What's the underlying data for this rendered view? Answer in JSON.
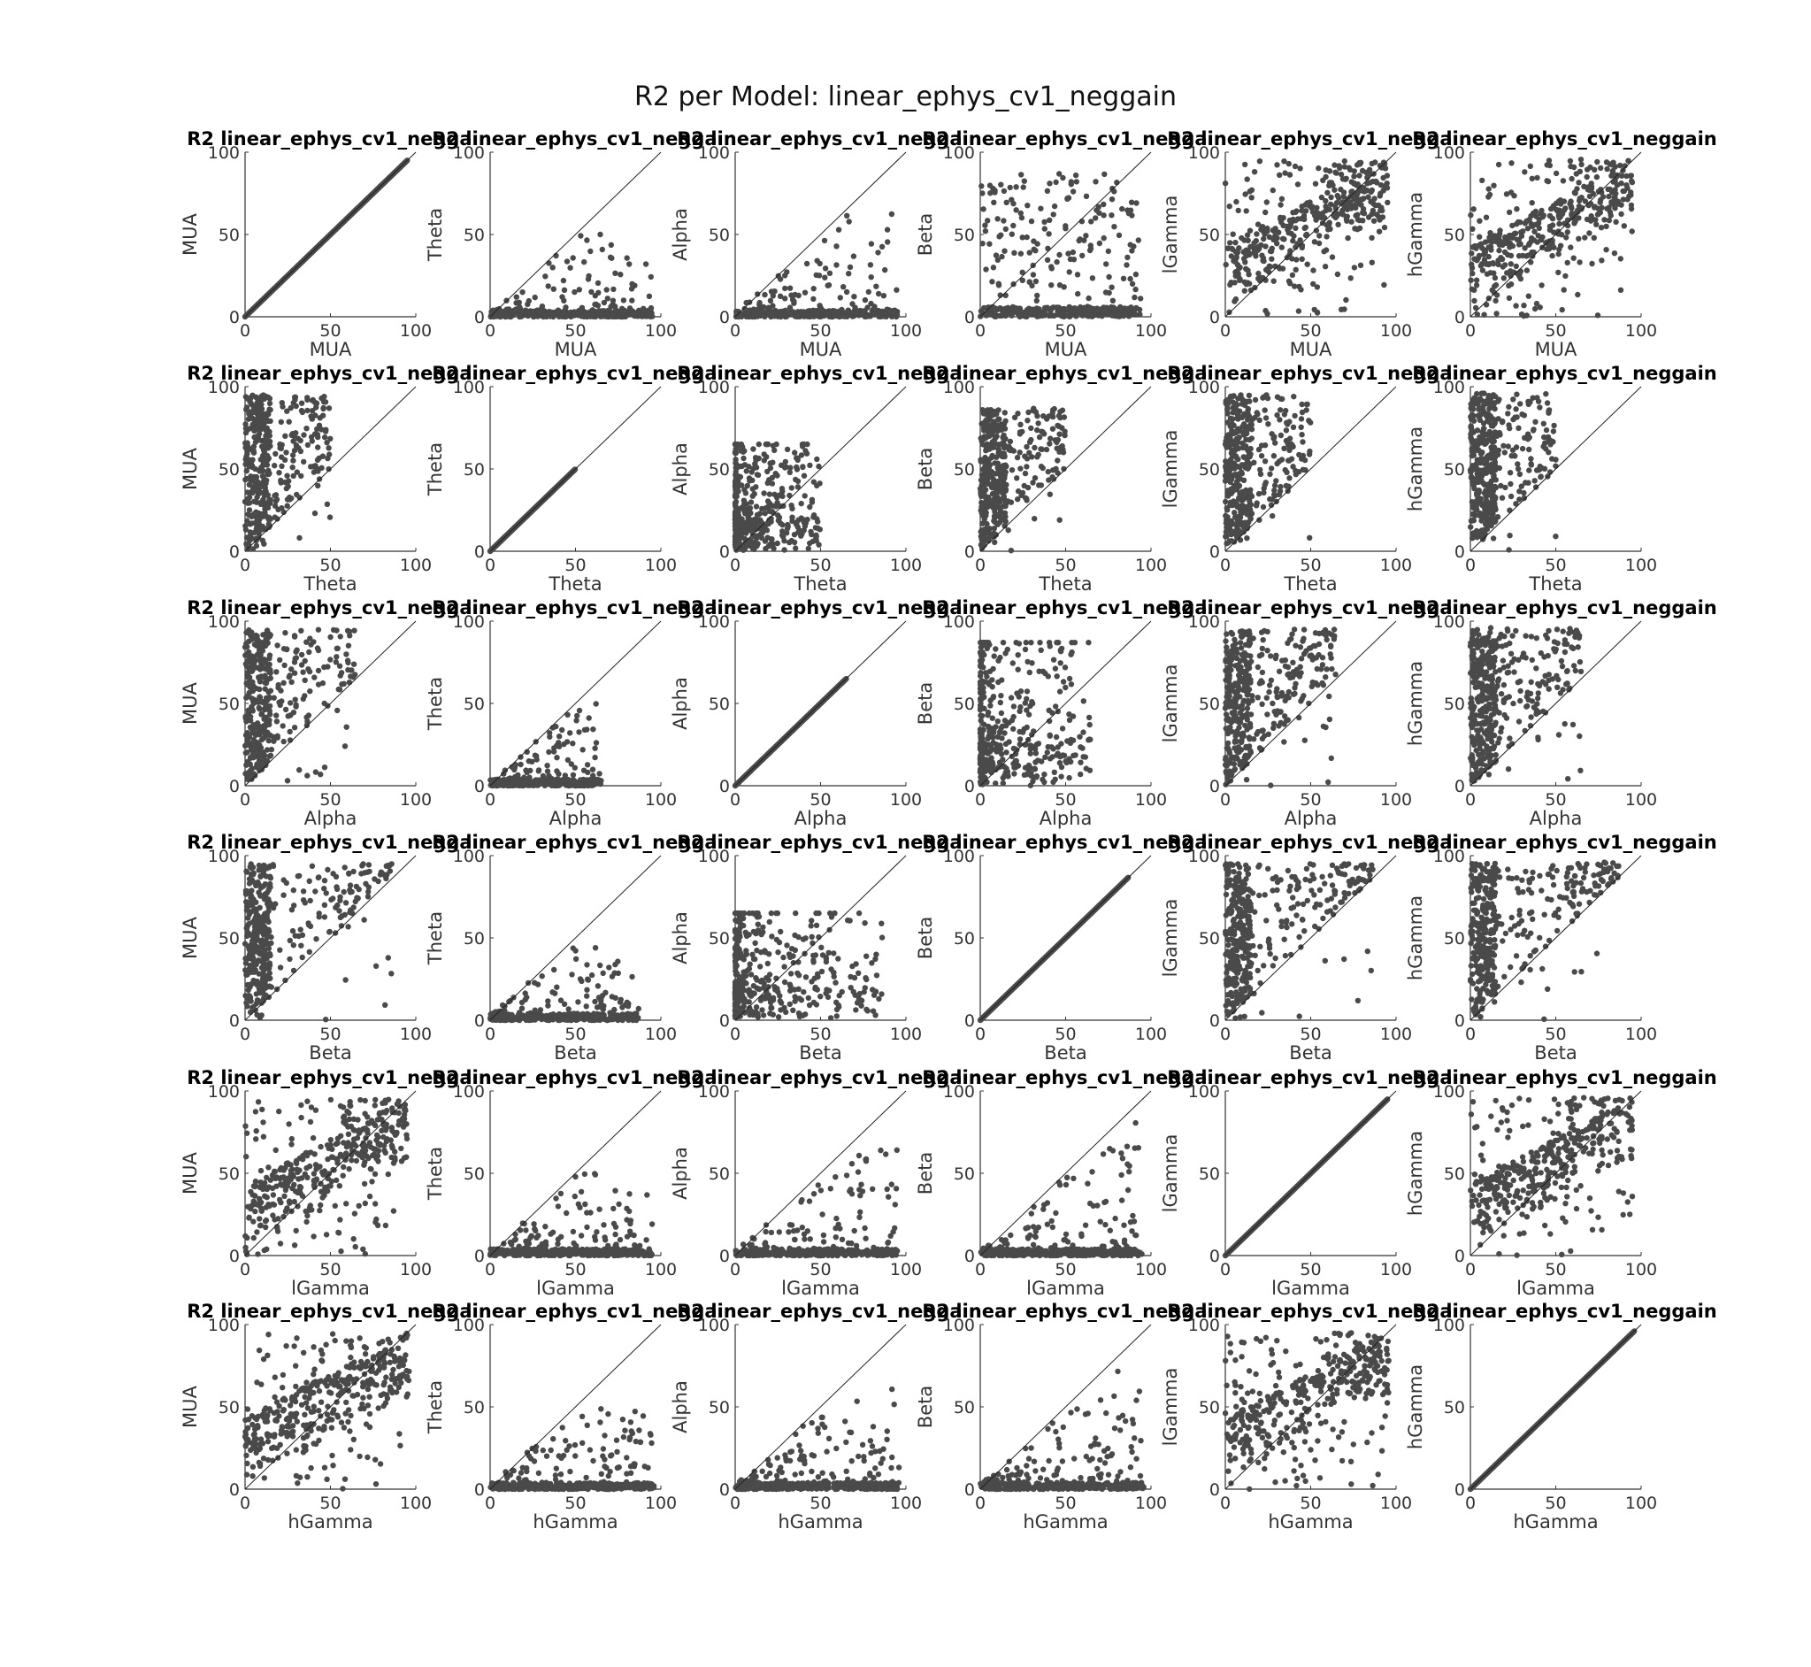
{
  "figure": {
    "title": "R2 per Model: linear_ephys_cv1_neggain",
    "panel_title": "R2 linear_ephys_cv1_neggain"
  },
  "colors": {
    "points": "#4a4a4a",
    "axes": "#333333",
    "diagonal": "#222222"
  },
  "chart_data": {
    "type": "scatter",
    "layout": "6x6 grid",
    "row_variables": [
      "MUA",
      "Theta",
      "Alpha",
      "Beta",
      "lGamma",
      "hGamma"
    ],
    "column_variables": [
      "MUA",
      "Theta",
      "Alpha",
      "Beta",
      "lGamma",
      "hGamma"
    ],
    "xlim": [
      0,
      100
    ],
    "ylim": [
      0,
      100
    ],
    "ticks": [
      "0",
      "50",
      "100"
    ],
    "reference_line": "y = x",
    "grid": false,
    "value_ranges": {
      "MUA": [
        0,
        95
      ],
      "Theta": [
        0,
        50
      ],
      "Alpha": [
        0,
        65
      ],
      "Beta": [
        0,
        87
      ],
      "lGamma": [
        0,
        95
      ],
      "hGamma": [
        0,
        96
      ]
    },
    "panels": [
      {
        "row": "MUA",
        "col": "MUA",
        "xlabel": "MUA",
        "ylabel": "MUA",
        "pattern": "identity",
        "x_max": 95
      },
      {
        "row": "MUA",
        "col": "Theta",
        "xlabel": "MUA",
        "ylabel": "Theta",
        "pattern": "below-diagonal",
        "x_max": 95,
        "y_max": 50
      },
      {
        "row": "MUA",
        "col": "Alpha",
        "xlabel": "MUA",
        "ylabel": "Alpha",
        "pattern": "below-diagonal",
        "x_max": 95,
        "y_max": 65
      },
      {
        "row": "MUA",
        "col": "Beta",
        "xlabel": "MUA",
        "ylabel": "Beta",
        "pattern": "spread",
        "x_max": 95,
        "y_max": 87
      },
      {
        "row": "MUA",
        "col": "lGamma",
        "xlabel": "MUA",
        "ylabel": "lGamma",
        "pattern": "correlated",
        "x_max": 95,
        "y_max": 95
      },
      {
        "row": "MUA",
        "col": "hGamma",
        "xlabel": "MUA",
        "ylabel": "hGamma",
        "pattern": "correlated",
        "x_max": 95,
        "y_max": 96
      },
      {
        "row": "Theta",
        "col": "MUA",
        "xlabel": "Theta",
        "ylabel": "MUA",
        "pattern": "above-diagonal",
        "x_max": 50,
        "y_max": 95
      },
      {
        "row": "Theta",
        "col": "Theta",
        "xlabel": "Theta",
        "ylabel": "Theta",
        "pattern": "identity",
        "x_max": 50
      },
      {
        "row": "Theta",
        "col": "Alpha",
        "xlabel": "Theta",
        "ylabel": "Alpha",
        "pattern": "cluster",
        "x_max": 50,
        "y_max": 65
      },
      {
        "row": "Theta",
        "col": "Beta",
        "xlabel": "Theta",
        "ylabel": "Beta",
        "pattern": "above-diagonal",
        "x_max": 50,
        "y_max": 87
      },
      {
        "row": "Theta",
        "col": "lGamma",
        "xlabel": "Theta",
        "ylabel": "lGamma",
        "pattern": "above-diagonal",
        "x_max": 50,
        "y_max": 95
      },
      {
        "row": "Theta",
        "col": "hGamma",
        "xlabel": "Theta",
        "ylabel": "hGamma",
        "pattern": "above-diagonal",
        "x_max": 50,
        "y_max": 96
      },
      {
        "row": "Alpha",
        "col": "MUA",
        "xlabel": "Alpha",
        "ylabel": "MUA",
        "pattern": "above-diagonal",
        "x_max": 65,
        "y_max": 95
      },
      {
        "row": "Alpha",
        "col": "Theta",
        "xlabel": "Alpha",
        "ylabel": "Theta",
        "pattern": "below-diagonal",
        "x_max": 65,
        "y_max": 50
      },
      {
        "row": "Alpha",
        "col": "Alpha",
        "xlabel": "Alpha",
        "ylabel": "Alpha",
        "pattern": "identity",
        "x_max": 65
      },
      {
        "row": "Alpha",
        "col": "Beta",
        "xlabel": "Alpha",
        "ylabel": "Beta",
        "pattern": "cluster",
        "x_max": 65,
        "y_max": 87
      },
      {
        "row": "Alpha",
        "col": "lGamma",
        "xlabel": "Alpha",
        "ylabel": "lGamma",
        "pattern": "above-diagonal",
        "x_max": 65,
        "y_max": 95
      },
      {
        "row": "Alpha",
        "col": "hGamma",
        "xlabel": "Alpha",
        "ylabel": "hGamma",
        "pattern": "above-diagonal",
        "x_max": 65,
        "y_max": 96
      },
      {
        "row": "Beta",
        "col": "MUA",
        "xlabel": "Beta",
        "ylabel": "MUA",
        "pattern": "above-diagonal",
        "x_max": 87,
        "y_max": 95
      },
      {
        "row": "Beta",
        "col": "Theta",
        "xlabel": "Beta",
        "ylabel": "Theta",
        "pattern": "below-diagonal",
        "x_max": 87,
        "y_max": 50
      },
      {
        "row": "Beta",
        "col": "Alpha",
        "xlabel": "Beta",
        "ylabel": "Alpha",
        "pattern": "cluster",
        "x_max": 87,
        "y_max": 65
      },
      {
        "row": "Beta",
        "col": "Beta",
        "xlabel": "Beta",
        "ylabel": "Beta",
        "pattern": "identity",
        "x_max": 87
      },
      {
        "row": "Beta",
        "col": "lGamma",
        "xlabel": "Beta",
        "ylabel": "lGamma",
        "pattern": "above-diagonal",
        "x_max": 87,
        "y_max": 95
      },
      {
        "row": "Beta",
        "col": "hGamma",
        "xlabel": "Beta",
        "ylabel": "hGamma",
        "pattern": "above-diagonal",
        "x_max": 87,
        "y_max": 96
      },
      {
        "row": "lGamma",
        "col": "MUA",
        "xlabel": "lGamma",
        "ylabel": "MUA",
        "pattern": "correlated",
        "x_max": 95,
        "y_max": 95
      },
      {
        "row": "lGamma",
        "col": "Theta",
        "xlabel": "lGamma",
        "ylabel": "Theta",
        "pattern": "below-diagonal",
        "x_max": 95,
        "y_max": 50
      },
      {
        "row": "lGamma",
        "col": "Alpha",
        "xlabel": "lGamma",
        "ylabel": "Alpha",
        "pattern": "below-diagonal",
        "x_max": 95,
        "y_max": 65
      },
      {
        "row": "lGamma",
        "col": "Beta",
        "xlabel": "lGamma",
        "ylabel": "Beta",
        "pattern": "below-diagonal",
        "x_max": 95,
        "y_max": 87
      },
      {
        "row": "lGamma",
        "col": "lGamma",
        "xlabel": "lGamma",
        "ylabel": "lGamma",
        "pattern": "identity",
        "x_max": 95
      },
      {
        "row": "lGamma",
        "col": "hGamma",
        "xlabel": "lGamma",
        "ylabel": "hGamma",
        "pattern": "correlated",
        "x_max": 95,
        "y_max": 96
      },
      {
        "row": "hGamma",
        "col": "MUA",
        "xlabel": "hGamma",
        "ylabel": "MUA",
        "pattern": "correlated",
        "x_max": 96,
        "y_max": 95
      },
      {
        "row": "hGamma",
        "col": "Theta",
        "xlabel": "hGamma",
        "ylabel": "Theta",
        "pattern": "below-diagonal",
        "x_max": 96,
        "y_max": 50
      },
      {
        "row": "hGamma",
        "col": "Alpha",
        "xlabel": "hGamma",
        "ylabel": "Alpha",
        "pattern": "below-diagonal",
        "x_max": 96,
        "y_max": 65
      },
      {
        "row": "hGamma",
        "col": "Beta",
        "xlabel": "hGamma",
        "ylabel": "Beta",
        "pattern": "below-diagonal",
        "x_max": 96,
        "y_max": 87
      },
      {
        "row": "hGamma",
        "col": "lGamma",
        "xlabel": "hGamma",
        "ylabel": "lGamma",
        "pattern": "correlated",
        "x_max": 96,
        "y_max": 95
      },
      {
        "row": "hGamma",
        "col": "hGamma",
        "xlabel": "hGamma",
        "ylabel": "hGamma",
        "pattern": "identity",
        "x_max": 96
      }
    ]
  }
}
